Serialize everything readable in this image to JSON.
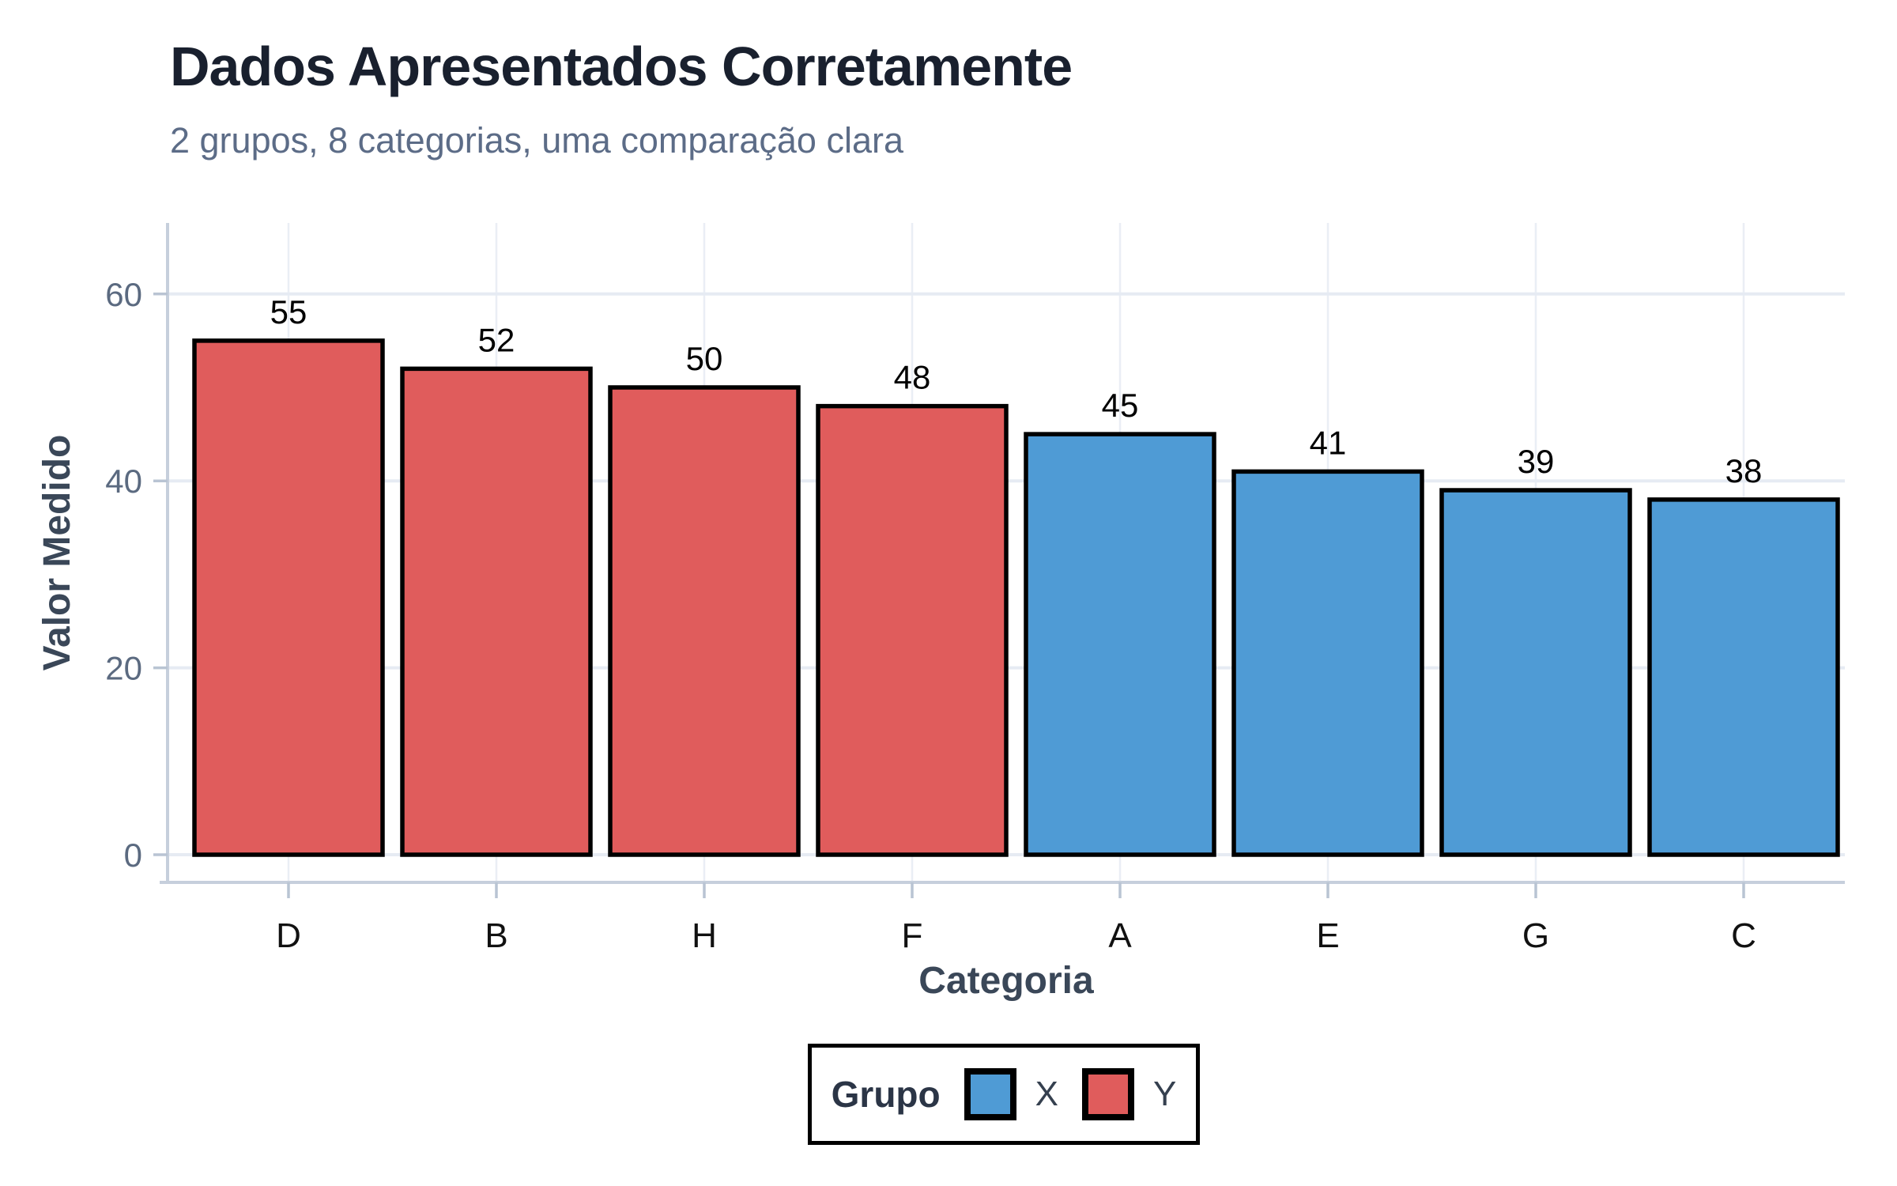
{
  "chart_data": {
    "type": "bar",
    "title": "Dados Apresentados Corretamente",
    "subtitle": "2 grupos, 8 categorias, uma comparação clara",
    "xlabel": "Categoria",
    "ylabel": "Valor Medido",
    "categories": [
      "D",
      "B",
      "H",
      "F",
      "A",
      "E",
      "G",
      "C"
    ],
    "values": [
      55,
      52,
      50,
      48,
      45,
      41,
      39,
      38
    ],
    "groups": [
      "Y",
      "Y",
      "Y",
      "Y",
      "X",
      "X",
      "X",
      "X"
    ],
    "group_colors": {
      "X": "#4F9BD5",
      "Y": "#E05C5C"
    },
    "bar_outline_color": "#000000",
    "value_labels_shown": true,
    "yticks": [
      0,
      20,
      40,
      60
    ],
    "ylim": [
      0,
      60
    ],
    "grid": true,
    "legend": {
      "title": "Grupo",
      "position": "bottom",
      "entries": [
        {
          "label": "X",
          "color": "#4F9BD5"
        },
        {
          "label": "Y",
          "color": "#E05C5C"
        }
      ]
    }
  }
}
